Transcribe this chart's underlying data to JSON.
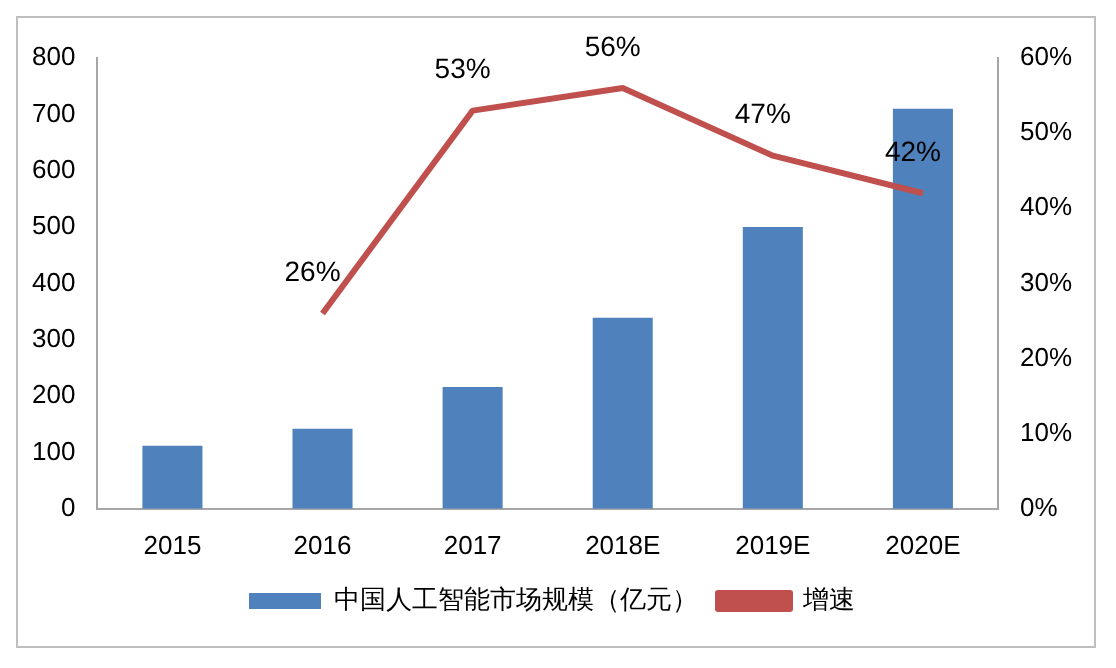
{
  "chart_data": {
    "type": "bar",
    "categories": [
      "2015",
      "2016",
      "2017",
      "2018E",
      "2019E",
      "2020E"
    ],
    "series": [
      {
        "name": "中国人工智能市场规模（亿元）",
        "color": "#4f81bd",
        "values": [
          112,
          142,
          216,
          339,
          500,
          710
        ]
      },
      {
        "name": "增速",
        "type": "line",
        "axis": "y2",
        "color": "#c0504d",
        "values": [
          null,
          26,
          53,
          56,
          47,
          42
        ],
        "value_labels": [
          null,
          "26%",
          "53%",
          "56%",
          "47%",
          "42%"
        ]
      }
    ],
    "ylim": [
      0,
      800
    ],
    "yticks": [
      0,
      100,
      200,
      300,
      400,
      500,
      600,
      700,
      800
    ],
    "y2lim": [
      0,
      60
    ],
    "y2ticks": [
      {
        "value": 0,
        "label": "0%"
      },
      {
        "value": 10,
        "label": "10%"
      },
      {
        "value": 20,
        "label": "20%"
      },
      {
        "value": 30,
        "label": "30%"
      },
      {
        "value": 40,
        "label": "40%"
      },
      {
        "value": 50,
        "label": "50%"
      },
      {
        "value": 60,
        "label": "60%"
      }
    ],
    "grid": false,
    "legend": "bottom",
    "marker": "none"
  }
}
